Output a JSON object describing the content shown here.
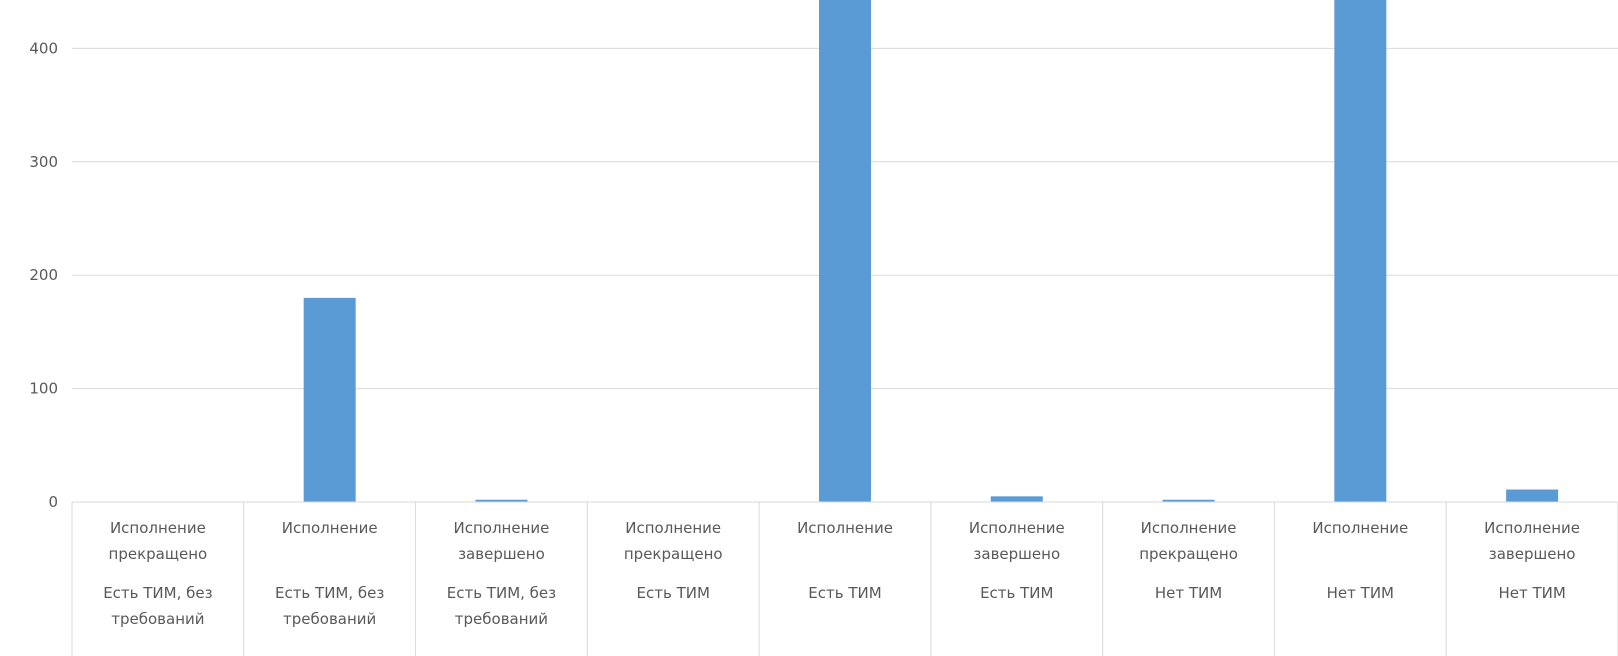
{
  "chart_data": {
    "type": "bar",
    "grid": true,
    "ylim": [
      0,
      450
    ],
    "yticks": [
      0,
      100,
      200,
      300,
      400
    ],
    "color": "#5b9bd5",
    "categories": [
      {
        "status": "Исполнение прекращено",
        "group": "Есть ТИМ, без требований"
      },
      {
        "status": "Исполнение",
        "group": "Есть ТИМ, без требований"
      },
      {
        "status": "Исполнение завершено",
        "group": "Есть ТИМ, без требований"
      },
      {
        "status": "Исполнение прекращено",
        "group": "Есть ТИМ"
      },
      {
        "status": "Исполнение",
        "group": "Есть ТИМ"
      },
      {
        "status": "Исполнение завершено",
        "group": "Есть ТИМ"
      },
      {
        "status": "Исполнение прекращено",
        "group": "Нет ТИМ"
      },
      {
        "status": "Исполнение",
        "group": "Нет ТИМ"
      },
      {
        "status": "Исполнение завершено",
        "group": "Нет ТИМ"
      }
    ],
    "values": [
      0,
      180,
      2,
      0,
      450,
      5,
      2,
      450,
      11
    ]
  }
}
